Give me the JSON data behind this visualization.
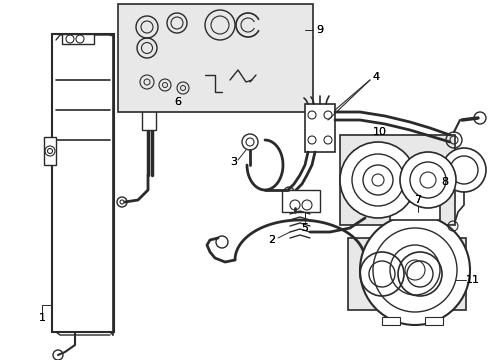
{
  "background_color": "#ffffff",
  "fig_width": 4.89,
  "fig_height": 3.6,
  "dpi": 100,
  "line_color": "#2a2a2a",
  "box_fill": "#e8e8e8",
  "lw": 0.9
}
